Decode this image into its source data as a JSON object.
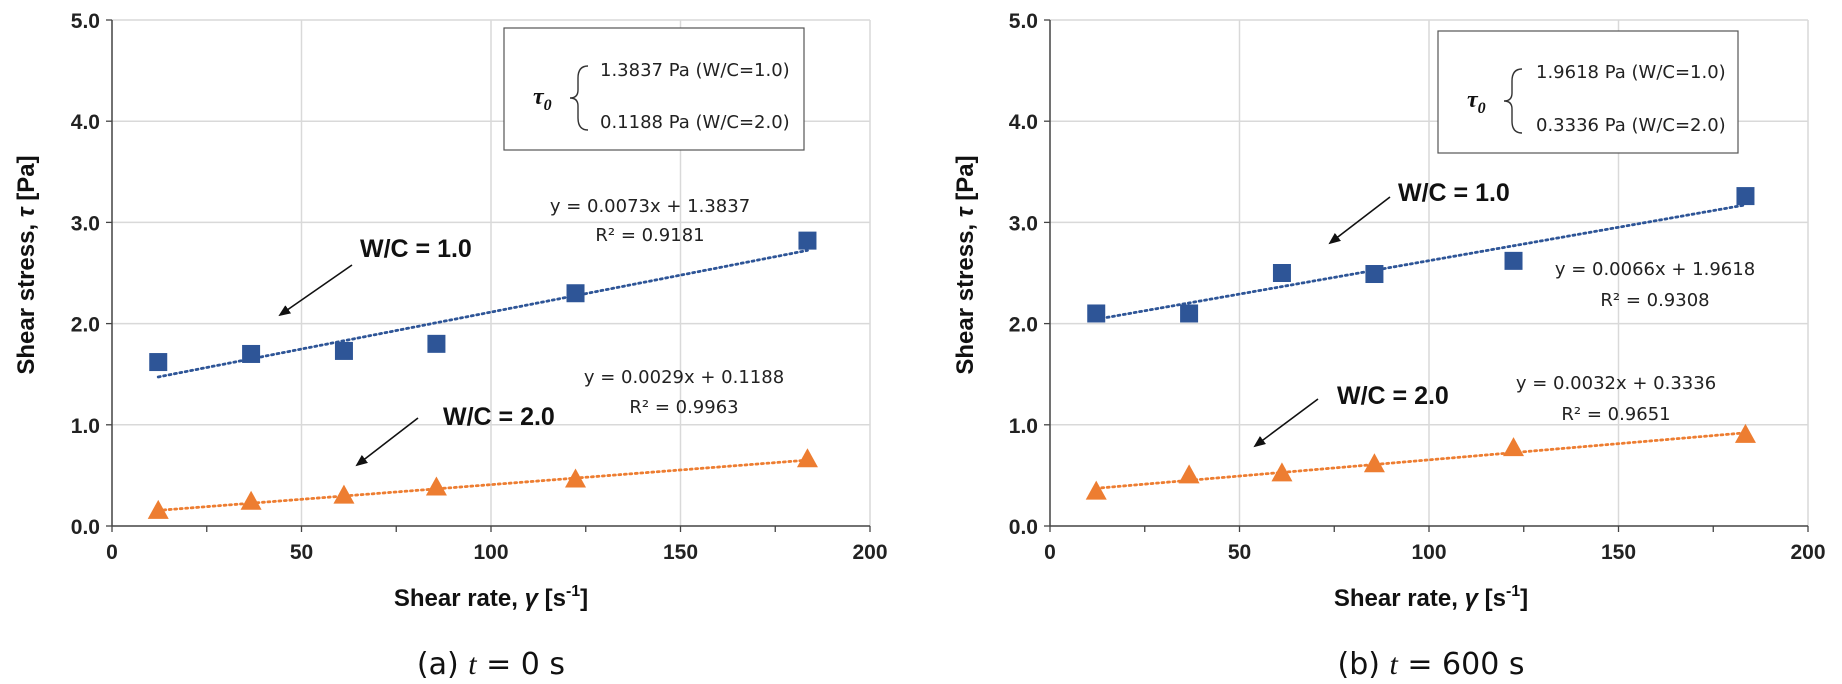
{
  "colors": {
    "wc1": "#2E5597",
    "wc2": "#ED7D31",
    "grid": "#d9d9d9",
    "axis": "#444444"
  },
  "chart_data": [
    {
      "type": "scatter",
      "caption_prefix": "(a) ",
      "caption_var": "t",
      "caption_suffix": " = 0 s",
      "xlabel": "Shear rate, ",
      "xlabel_var": "γ",
      "xlabel_unit": " [s",
      "xlabel_exp": "-1",
      "xlabel_end": "]",
      "ylabel": "Shear stress, ",
      "ylabel_var": "τ",
      "ylabel_unit": " [Pa]",
      "xlim": [
        0,
        200
      ],
      "ylim": [
        0,
        5
      ],
      "xticks": [
        "0",
        "50",
        "100",
        "150",
        "200"
      ],
      "yticks": [
        "0.0",
        "1.0",
        "2.0",
        "3.0",
        "4.0",
        "5.0"
      ],
      "grid": true,
      "legend_box": {
        "symbol": "τ",
        "symbol_sub": "0",
        "line1": "1.3837 Pa (W/C=1.0)",
        "line2": "0.1188 Pa (W/C=2.0)"
      },
      "series": [
        {
          "name": "W/C = 1.0",
          "marker": "square",
          "x": [
            12.2,
            36.7,
            61.2,
            85.6,
            122.3,
            183.5
          ],
          "y": [
            1.62,
            1.7,
            1.73,
            1.8,
            2.3,
            2.82
          ],
          "trend": {
            "slope": 0.0073,
            "intercept": 1.3837,
            "eq": "y = 0.0073x + 1.3837",
            "r2": "R² = 0.9181"
          }
        },
        {
          "name": "W/C = 2.0",
          "marker": "triangle",
          "x": [
            12.2,
            36.7,
            61.2,
            85.6,
            122.3,
            183.5
          ],
          "y": [
            0.15,
            0.24,
            0.3,
            0.38,
            0.46,
            0.66
          ],
          "trend": {
            "slope": 0.0029,
            "intercept": 0.1188,
            "eq": "y = 0.0029x + 0.1188",
            "r2": "R² = 0.9963"
          }
        }
      ]
    },
    {
      "type": "scatter",
      "caption_prefix": "(b) ",
      "caption_var": "t",
      "caption_suffix": " = 600 s",
      "xlabel": "Shear rate, ",
      "xlabel_var": "γ",
      "xlabel_unit": " [s",
      "xlabel_exp": "-1",
      "xlabel_end": "]",
      "ylabel": "Shear stress, ",
      "ylabel_var": "τ",
      "ylabel_unit": " [Pa]",
      "xlim": [
        0,
        200
      ],
      "ylim": [
        0,
        5
      ],
      "xticks": [
        "0",
        "50",
        "100",
        "150",
        "200"
      ],
      "yticks": [
        "0.0",
        "1.0",
        "2.0",
        "3.0",
        "4.0",
        "5.0"
      ],
      "grid": true,
      "legend_box": {
        "symbol": "τ",
        "symbol_sub": "0",
        "line1": "1.9618 Pa (W/C=1.0)",
        "line2": "0.3336 Pa (W/C=2.0)"
      },
      "series": [
        {
          "name": "W/C = 1.0",
          "marker": "square",
          "x": [
            12.2,
            36.7,
            61.2,
            85.6,
            122.3,
            183.5
          ],
          "y": [
            2.1,
            2.1,
            2.5,
            2.49,
            2.62,
            3.26
          ],
          "trend": {
            "slope": 0.0066,
            "intercept": 1.9618,
            "eq": "y = 0.0066x + 1.9618",
            "r2": "R² = 0.9308"
          }
        },
        {
          "name": "W/C = 2.0",
          "marker": "triangle",
          "x": [
            12.2,
            36.7,
            61.2,
            85.6,
            122.3,
            183.5
          ],
          "y": [
            0.34,
            0.5,
            0.52,
            0.61,
            0.77,
            0.9
          ],
          "trend": {
            "slope": 0.0032,
            "intercept": 0.3336,
            "eq": "y = 0.0032x + 0.3336",
            "r2": "R² = 0.9651"
          }
        }
      ]
    }
  ]
}
